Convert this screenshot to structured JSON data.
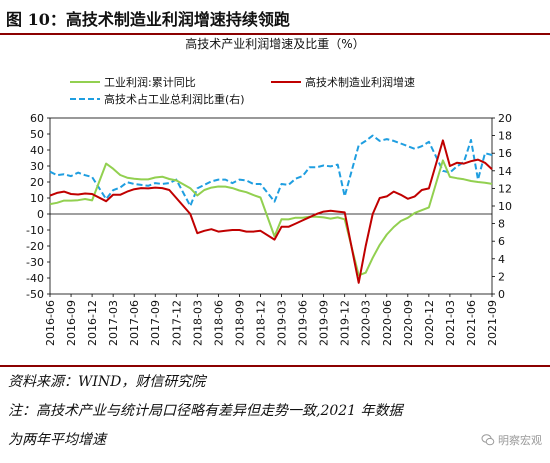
{
  "figure": {
    "title": "图 10：高技术制造业利润增速持续领跑",
    "source": "资料来源：WIND，财信研究院",
    "footnote_line1": "注：高技术产业与统计局口径略有差异但走势一致,2021 年数据",
    "footnote_line2": "为两年平均增速",
    "watermark": "明察宏观"
  },
  "chart_data": {
    "type": "line",
    "title": "高技术产业利润增速及比重（%）",
    "x_ticks": [
      "2016-06",
      "2016-09",
      "2016-12",
      "2017-03",
      "2017-06",
      "2017-09",
      "2017-12",
      "2018-03",
      "2018-06",
      "2018-09",
      "2018-12",
      "2019-03",
      "2019-06",
      "2019-09",
      "2019-12",
      "2020-03",
      "2020-06",
      "2020-09",
      "2020-12",
      "2021-03",
      "2021-06",
      "2021-09"
    ],
    "y_left": {
      "range": [
        -50,
        60
      ],
      "ticks": [
        -50,
        -40,
        -30,
        -20,
        -10,
        0,
        10,
        20,
        30,
        40,
        50,
        60
      ]
    },
    "y_right": {
      "range": [
        0,
        20
      ],
      "ticks": [
        0,
        2,
        4,
        6,
        8,
        10,
        12,
        14,
        16,
        18,
        20
      ]
    },
    "legend_placement": "top",
    "colors": {
      "series1": "#92d050",
      "series2": "#c00000",
      "series3": "#1f9ee0"
    },
    "series": [
      {
        "name": "工业利润:累计同比",
        "axis": "left",
        "style": "solid",
        "x": [
          "2016-06",
          "2016-07",
          "2016-08",
          "2016-09",
          "2016-10",
          "2016-11",
          "2016-12",
          "2017-02",
          "2017-03",
          "2017-04",
          "2017-05",
          "2017-06",
          "2017-07",
          "2017-08",
          "2017-09",
          "2017-10",
          "2017-11",
          "2017-12",
          "2018-02",
          "2018-03",
          "2018-04",
          "2018-05",
          "2018-06",
          "2018-07",
          "2018-08",
          "2018-09",
          "2018-10",
          "2018-11",
          "2018-12",
          "2019-02",
          "2019-03",
          "2019-04",
          "2019-05",
          "2019-06",
          "2019-07",
          "2019-08",
          "2019-09",
          "2019-10",
          "2019-11",
          "2019-12",
          "2020-02",
          "2020-03",
          "2020-04",
          "2020-05",
          "2020-06",
          "2020-07",
          "2020-08",
          "2020-09",
          "2020-10",
          "2020-11",
          "2020-12",
          "2021-02",
          "2021-03",
          "2021-04",
          "2021-05",
          "2021-06",
          "2021-07",
          "2021-08",
          "2021-09"
        ],
        "values": [
          6.2,
          7.0,
          8.4,
          8.4,
          8.6,
          9.4,
          8.5,
          31.5,
          28.3,
          24.4,
          22.7,
          22.0,
          21.6,
          21.6,
          22.8,
          23.3,
          21.9,
          21.0,
          16.1,
          11.6,
          15.0,
          16.5,
          17.2,
          17.1,
          16.2,
          14.7,
          13.6,
          11.8,
          10.3,
          -14.0,
          -3.3,
          -3.4,
          -2.3,
          -2.4,
          -1.7,
          -1.7,
          -2.1,
          -2.9,
          -2.1,
          -3.3,
          -38.3,
          -36.7,
          -27.4,
          -19.3,
          -12.8,
          -8.1,
          -4.4,
          -2.4,
          0.7,
          2.4,
          4.1,
          33.5,
          23.2,
          22.4,
          21.7,
          20.6,
          20.0,
          19.5,
          18.8
        ]
      },
      {
        "name": "高技术制造业利润增速",
        "axis": "left",
        "style": "solid",
        "x": [
          "2016-06",
          "2016-07",
          "2016-08",
          "2016-09",
          "2016-10",
          "2016-11",
          "2016-12",
          "2017-02",
          "2017-03",
          "2017-04",
          "2017-05",
          "2017-06",
          "2017-07",
          "2017-08",
          "2017-09",
          "2017-10",
          "2017-11",
          "2017-12",
          "2018-02",
          "2018-03",
          "2018-04",
          "2018-05",
          "2018-06",
          "2018-07",
          "2018-08",
          "2018-09",
          "2018-10",
          "2018-11",
          "2018-12",
          "2019-02",
          "2019-03",
          "2019-04",
          "2019-05",
          "2019-06",
          "2019-07",
          "2019-08",
          "2019-09",
          "2019-10",
          "2019-11",
          "2019-12",
          "2020-02",
          "2020-03",
          "2020-04",
          "2020-05",
          "2020-06",
          "2020-07",
          "2020-08",
          "2020-09",
          "2020-10",
          "2020-11",
          "2020-12",
          "2021-02",
          "2021-03",
          "2021-04",
          "2021-05",
          "2021-06",
          "2021-07",
          "2021-08",
          "2021-09"
        ],
        "values": [
          11.5,
          13.2,
          14.0,
          12.5,
          12.2,
          12.8,
          12.5,
          8.0,
          12.0,
          12.0,
          14.0,
          15.5,
          16.2,
          16.0,
          16.5,
          16.2,
          15.0,
          10.0,
          0.0,
          -12.0,
          -10.5,
          -9.5,
          -11.0,
          -10.5,
          -10.0,
          -10.0,
          -11.0,
          -11.0,
          -10.5,
          -16.0,
          -8.0,
          -8.0,
          -6.0,
          -4.0,
          -2.0,
          0.0,
          1.5,
          2.0,
          1.5,
          1.0,
          -43.0,
          -20.0,
          0.0,
          10.0,
          11.0,
          14.0,
          12.0,
          9.5,
          11.0,
          15.0,
          16.0,
          46.0,
          30.0,
          32.0,
          31.5,
          33.0,
          34.0,
          32.0,
          28.0
        ]
      },
      {
        "name": "高技术占工业总利润比重(右)",
        "axis": "right",
        "style": "dashed",
        "x": [
          "2016-06",
          "2016-07",
          "2016-08",
          "2016-09",
          "2016-10",
          "2016-11",
          "2016-12",
          "2017-02",
          "2017-03",
          "2017-04",
          "2017-05",
          "2017-06",
          "2017-07",
          "2017-08",
          "2017-09",
          "2017-10",
          "2017-11",
          "2017-12",
          "2018-02",
          "2018-03",
          "2018-04",
          "2018-05",
          "2018-06",
          "2018-07",
          "2018-08",
          "2018-09",
          "2018-10",
          "2018-11",
          "2018-12",
          "2019-02",
          "2019-03",
          "2019-04",
          "2019-05",
          "2019-06",
          "2019-07",
          "2019-08",
          "2019-09",
          "2019-10",
          "2019-11",
          "2019-12",
          "2020-02",
          "2020-03",
          "2020-04",
          "2020-05",
          "2020-06",
          "2020-07",
          "2020-08",
          "2020-09",
          "2020-10",
          "2020-11",
          "2020-12",
          "2021-02",
          "2021-03",
          "2021-04",
          "2021-05",
          "2021-06",
          "2021-07",
          "2021-08",
          "2021-09"
        ],
        "values": [
          13.9,
          13.5,
          13.6,
          13.4,
          13.8,
          13.5,
          13.3,
          10.8,
          11.8,
          12.1,
          12.7,
          12.5,
          12.4,
          12.3,
          12.6,
          12.5,
          12.6,
          13.0,
          10.0,
          12.0,
          12.4,
          12.8,
          13.0,
          13.0,
          12.6,
          13.0,
          12.9,
          12.5,
          12.5,
          10.5,
          12.5,
          12.4,
          13.1,
          13.4,
          14.4,
          14.4,
          14.6,
          14.5,
          14.7,
          11.1,
          16.9,
          17.4,
          18.0,
          17.4,
          17.6,
          17.4,
          17.1,
          16.8,
          16.5,
          16.8,
          17.3,
          14.0,
          13.8,
          14.5,
          15.0,
          17.5,
          13.0,
          16.0,
          15.8
        ]
      }
    ]
  }
}
